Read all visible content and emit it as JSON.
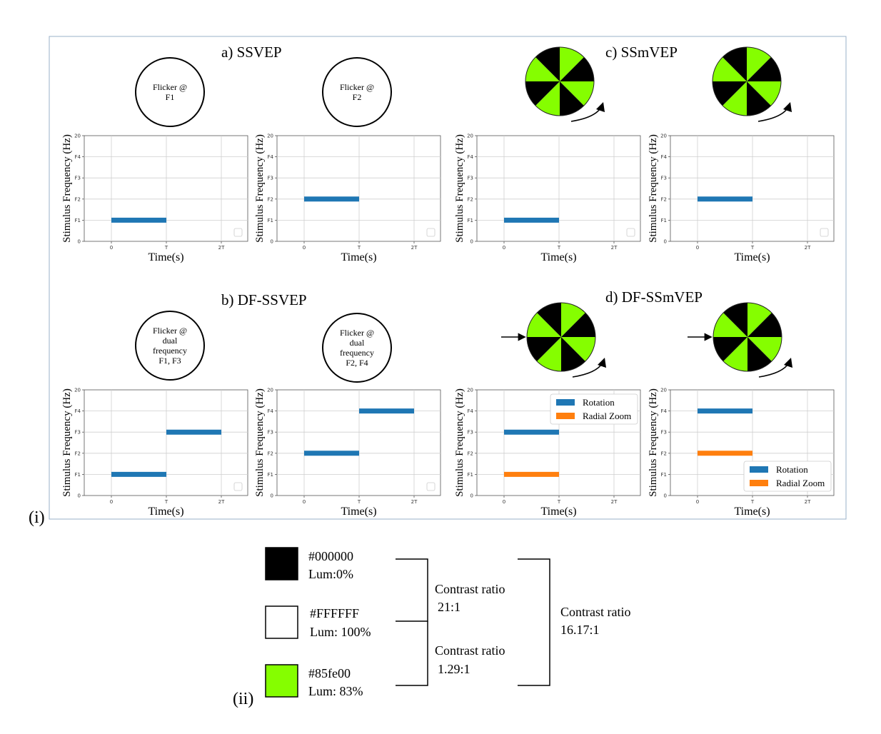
{
  "figure": {
    "part_i_label": "(i)",
    "part_ii_label": "(ii)",
    "panel_titles": {
      "a": "a) SSVEP",
      "b": "b) DF-SSVEP",
      "c": "c) SSmVEP",
      "d": "d) DF-SSmVEP"
    },
    "stimuli": {
      "flicker_f1": [
        "Flicker @",
        "F1"
      ],
      "flicker_f2": [
        "Flicker @",
        "F2"
      ],
      "flicker_dual_1": [
        "Flicker @",
        "dual",
        "frequency",
        "F1, F3"
      ],
      "flicker_dual_2": [
        "Flicker @",
        "dual",
        "frequency",
        "F2, F4"
      ],
      "checkerboard_colors": [
        "#85fe00",
        "#000000"
      ]
    }
  },
  "chart_data": [
    {
      "panel": "a-1",
      "type": "line",
      "xlabel": "Time(s)",
      "ylabel": "Stimulus Frequency (Hz)",
      "x_ticks": [
        "0",
        "T",
        "2T"
      ],
      "y_ticks": [
        "0",
        "F1",
        "F2",
        "F3",
        "F4",
        "20"
      ],
      "legend_empty": true,
      "series": [
        {
          "color": "#1f77b4",
          "segments": [
            {
              "x": [
                0,
                1
              ],
              "y": 1
            }
          ]
        }
      ]
    },
    {
      "panel": "a-2",
      "type": "line",
      "xlabel": "Time(s)",
      "ylabel": "Stimulus Frequency (Hz)",
      "x_ticks": [
        "0",
        "T",
        "2T"
      ],
      "y_ticks": [
        "0",
        "F1",
        "F2",
        "F3",
        "F4",
        "20"
      ],
      "legend_empty": true,
      "series": [
        {
          "color": "#1f77b4",
          "segments": [
            {
              "x": [
                0,
                1
              ],
              "y": 2
            }
          ]
        }
      ]
    },
    {
      "panel": "c-1",
      "type": "line",
      "xlabel": "Time(s)",
      "ylabel": "Stimulus Frequency (Hz)",
      "x_ticks": [
        "0",
        "T",
        "2T"
      ],
      "y_ticks": [
        "0",
        "F1",
        "F2",
        "F3",
        "F4",
        "20"
      ],
      "legend_empty": true,
      "series": [
        {
          "color": "#1f77b4",
          "segments": [
            {
              "x": [
                0,
                1
              ],
              "y": 1
            }
          ]
        }
      ]
    },
    {
      "panel": "c-2",
      "type": "line",
      "xlabel": "Time(s)",
      "ylabel": "Stimulus Frequency (Hz)",
      "x_ticks": [
        "0",
        "T",
        "2T"
      ],
      "y_ticks": [
        "0",
        "F1",
        "F2",
        "F3",
        "F4",
        "20"
      ],
      "legend_empty": true,
      "series": [
        {
          "color": "#1f77b4",
          "segments": [
            {
              "x": [
                0,
                1
              ],
              "y": 2
            }
          ]
        }
      ]
    },
    {
      "panel": "b-1",
      "type": "line",
      "xlabel": "Time(s)",
      "ylabel": "Stimulus Frequency (Hz)",
      "x_ticks": [
        "0",
        "T",
        "2T"
      ],
      "y_ticks": [
        "0",
        "F1",
        "F2",
        "F3",
        "F4",
        "20"
      ],
      "legend_empty": true,
      "series": [
        {
          "color": "#1f77b4",
          "segments": [
            {
              "x": [
                0,
                1
              ],
              "y": 1
            },
            {
              "x": [
                1,
                2
              ],
              "y": 3
            }
          ]
        }
      ]
    },
    {
      "panel": "b-2",
      "type": "line",
      "xlabel": "Time(s)",
      "ylabel": "Stimulus Frequency (Hz)",
      "x_ticks": [
        "0",
        "T",
        "2T"
      ],
      "y_ticks": [
        "0",
        "F1",
        "F2",
        "F3",
        "F4",
        "20"
      ],
      "legend_empty": true,
      "series": [
        {
          "color": "#1f77b4",
          "segments": [
            {
              "x": [
                0,
                1
              ],
              "y": 2
            },
            {
              "x": [
                1,
                2
              ],
              "y": 4
            }
          ]
        }
      ]
    },
    {
      "panel": "d-1",
      "type": "line",
      "xlabel": "Time(s)",
      "ylabel": "Stimulus Frequency (Hz)",
      "x_ticks": [
        "0",
        "T",
        "2T"
      ],
      "y_ticks": [
        "0",
        "F1",
        "F2",
        "F3",
        "F4",
        "20"
      ],
      "legend_position": "top-right",
      "series": [
        {
          "name": "Rotation",
          "color": "#1f77b4",
          "segments": [
            {
              "x": [
                0,
                1
              ],
              "y": 3
            }
          ]
        },
        {
          "name": "Radial Zoom",
          "color": "#ff7f0e",
          "segments": [
            {
              "x": [
                0,
                1
              ],
              "y": 1
            }
          ]
        }
      ]
    },
    {
      "panel": "d-2",
      "type": "line",
      "xlabel": "Time(s)",
      "ylabel": "Stimulus Frequency (Hz)",
      "x_ticks": [
        "0",
        "T",
        "2T"
      ],
      "y_ticks": [
        "0",
        "F1",
        "F2",
        "F3",
        "F4",
        "20"
      ],
      "legend_position": "bottom-right",
      "series": [
        {
          "name": "Rotation",
          "color": "#1f77b4",
          "segments": [
            {
              "x": [
                0,
                1
              ],
              "y": 4
            }
          ]
        },
        {
          "name": "Radial Zoom",
          "color": "#ff7f0e",
          "segments": [
            {
              "x": [
                0,
                1
              ],
              "y": 2
            }
          ]
        }
      ]
    }
  ],
  "swatches": [
    {
      "hex": "#000000",
      "fill": "#000000",
      "label_hex": "#000000",
      "label_lum": "Lum:0%"
    },
    {
      "hex": "#FFFFFF",
      "fill": "#FFFFFF",
      "label_hex": "#FFFFFF",
      "label_lum": "Lum: 100%"
    },
    {
      "hex": "#85fe00",
      "fill": "#85fe00",
      "label_hex": "#85fe00",
      "label_lum": "Lum: 83%"
    }
  ],
  "contrast": {
    "black_white": [
      "Contrast ratio",
      "21:1"
    ],
    "white_green": [
      "Contrast ratio",
      "1.29:1"
    ],
    "black_green": [
      "Contrast ratio",
      "16.17:1"
    ]
  }
}
